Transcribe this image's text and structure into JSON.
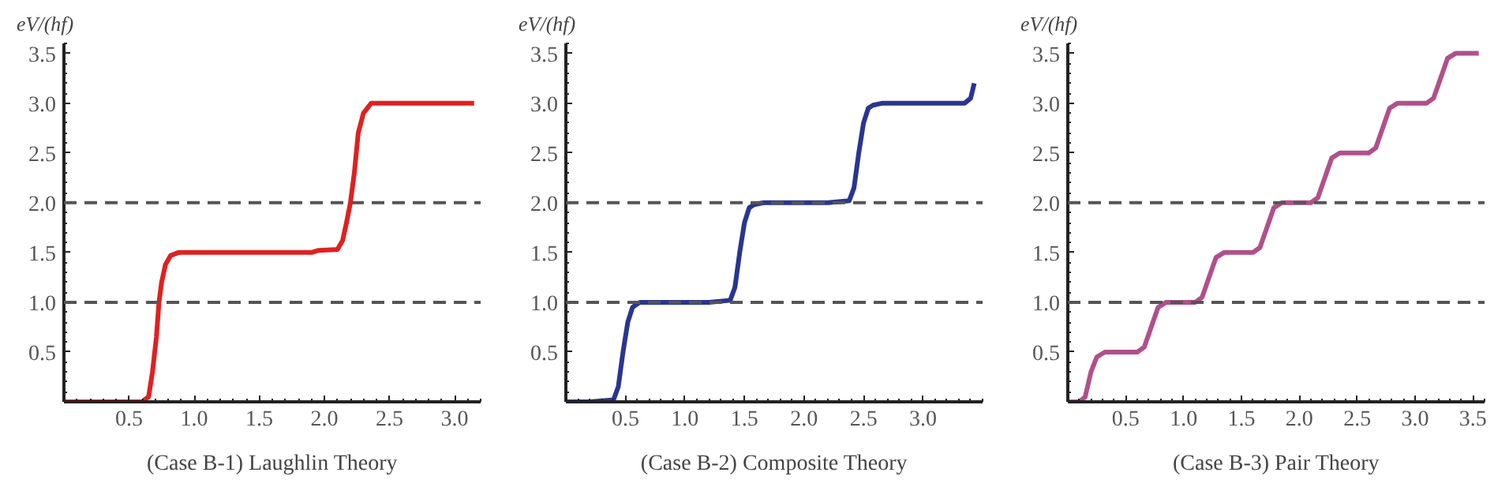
{
  "chart_data": [
    {
      "type": "line",
      "ylabel": "eV/(hf)",
      "xlabel": "(Case B-1) Laughlin Theory",
      "color": "#e02020",
      "xlim": [
        0,
        3.2
      ],
      "ylim": [
        0,
        3.6
      ],
      "xticks": [
        0.5,
        {
          "value": 1,
          "label": "1.0"
        },
        1.5,
        {
          "value": 2,
          "label": "2.0"
        },
        2.5,
        {
          "value": 3,
          "label": "3.0"
        }
      ],
      "yticks": [
        0.5,
        {
          "value": 1,
          "label": "1.0"
        },
        1.5,
        {
          "value": 2,
          "label": "2.0"
        },
        2.5,
        {
          "value": 3,
          "label": "3.0"
        },
        3.5
      ],
      "grid": false,
      "x": [
        0,
        0.3,
        0.6,
        0.65,
        0.68,
        0.71,
        0.73,
        0.75,
        0.78,
        0.82,
        0.88,
        1.2,
        1.6,
        1.9,
        1.95,
        2.1,
        2.14,
        2.17,
        2.2,
        2.23,
        2.26,
        2.3,
        2.36,
        2.7,
        3.15
      ],
      "values": [
        0,
        0,
        0,
        0.05,
        0.3,
        0.65,
        1.0,
        1.2,
        1.38,
        1.47,
        1.5,
        1.5,
        1.5,
        1.5,
        1.52,
        1.53,
        1.62,
        1.8,
        2.0,
        2.3,
        2.7,
        2.9,
        3.0,
        3.0,
        3.0
      ],
      "ref_lines": [
        {
          "axis": "y",
          "value": 1.0,
          "line_style": "dashed",
          "color": "#555555"
        },
        {
          "axis": "y",
          "value": 2.0,
          "line_style": "dashed",
          "color": "#555555"
        }
      ]
    },
    {
      "type": "line",
      "ylabel": "eV/(hf)",
      "xlabel": "(Case B-2) Composite Theory",
      "color": "#2a3590",
      "xlim": [
        0,
        3.5
      ],
      "ylim": [
        0,
        3.6
      ],
      "xticks": [
        0.5,
        {
          "value": 1,
          "label": "1.0"
        },
        1.5,
        {
          "value": 2,
          "label": "2.0"
        },
        2.5,
        {
          "value": 3,
          "label": "3.0"
        }
      ],
      "yticks": [
        0.5,
        {
          "value": 1,
          "label": "1.0"
        },
        1.5,
        {
          "value": 2,
          "label": "2.0"
        },
        2.5,
        {
          "value": 3,
          "label": "3.0"
        },
        3.5
      ],
      "grid": false,
      "x": [
        0,
        0.2,
        0.4,
        0.44,
        0.48,
        0.52,
        0.56,
        0.62,
        0.9,
        1.2,
        1.38,
        1.42,
        1.46,
        1.5,
        1.54,
        1.58,
        1.66,
        1.9,
        2.2,
        2.38,
        2.42,
        2.46,
        2.5,
        2.54,
        2.58,
        2.66,
        3.0,
        3.35,
        3.4,
        3.43
      ],
      "values": [
        0,
        0,
        0.02,
        0.15,
        0.5,
        0.8,
        0.95,
        1.0,
        1.0,
        1.0,
        1.02,
        1.15,
        1.5,
        1.8,
        1.95,
        1.98,
        2.0,
        2.0,
        2.0,
        2.02,
        2.15,
        2.5,
        2.8,
        2.95,
        2.98,
        3.0,
        3.0,
        3.0,
        3.05,
        3.2
      ],
      "ref_lines": [
        {
          "axis": "y",
          "value": 1.0,
          "line_style": "dashed",
          "color": "#555555"
        },
        {
          "axis": "y",
          "value": 2.0,
          "line_style": "dashed",
          "color": "#555555"
        }
      ]
    },
    {
      "type": "line",
      "ylabel": "eV/(hf)",
      "xlabel": "(Case B-3) Pair Theory",
      "color": "#b0508a",
      "xlim": [
        0,
        3.6
      ],
      "ylim": [
        0,
        3.6
      ],
      "xticks": [
        0.5,
        {
          "value": 1,
          "label": "1.0"
        },
        1.5,
        {
          "value": 2,
          "label": "2.0"
        },
        2.5,
        {
          "value": 3,
          "label": "3.0"
        },
        3.5
      ],
      "yticks": [
        0.5,
        {
          "value": 1,
          "label": "1.0"
        },
        1.5,
        {
          "value": 2,
          "label": "2.0"
        },
        2.5,
        {
          "value": 3,
          "label": "3.0"
        },
        3.5
      ],
      "grid": false,
      "x": [
        0,
        0.1,
        0.15,
        0.2,
        0.25,
        0.32,
        0.6,
        0.66,
        0.72,
        0.78,
        0.85,
        1.1,
        1.16,
        1.22,
        1.28,
        1.35,
        1.6,
        1.66,
        1.72,
        1.78,
        1.85,
        2.1,
        2.16,
        2.22,
        2.28,
        2.35,
        2.6,
        2.66,
        2.72,
        2.78,
        2.85,
        3.1,
        3.16,
        3.22,
        3.28,
        3.35,
        3.55
      ],
      "values": [
        0,
        0,
        0.05,
        0.3,
        0.45,
        0.5,
        0.5,
        0.55,
        0.75,
        0.95,
        1.0,
        1.0,
        1.05,
        1.25,
        1.45,
        1.5,
        1.5,
        1.55,
        1.75,
        1.95,
        2.0,
        2.0,
        2.05,
        2.25,
        2.45,
        2.5,
        2.5,
        2.55,
        2.75,
        2.95,
        3.0,
        3.0,
        3.05,
        3.25,
        3.45,
        3.5,
        3.5
      ],
      "ref_lines": [
        {
          "axis": "y",
          "value": 1.0,
          "line_style": "dashed",
          "color": "#555555"
        },
        {
          "axis": "y",
          "value": 2.0,
          "line_style": "dashed",
          "color": "#555555"
        }
      ]
    }
  ]
}
